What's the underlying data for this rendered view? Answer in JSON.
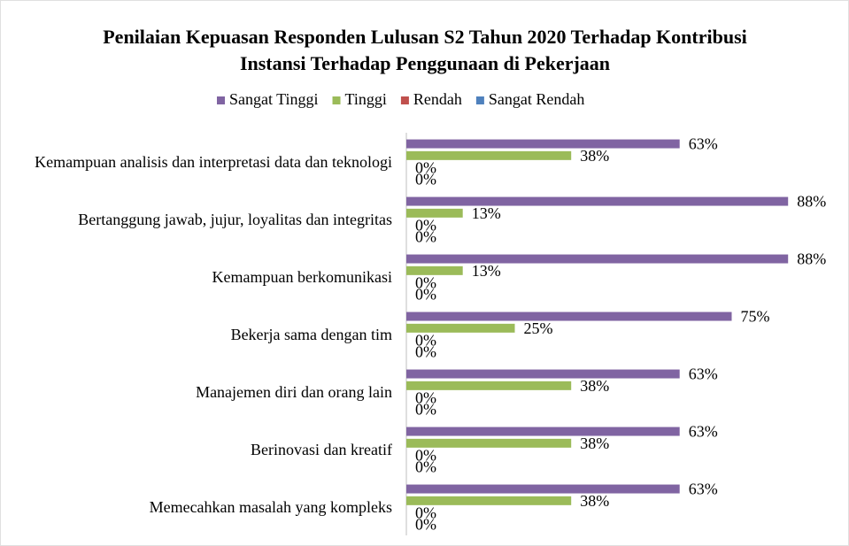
{
  "chart_data": {
    "type": "barh",
    "title": "Penilaian Kepuasan Responden Lulusan S2 Tahun 2020 Terhadap Kontribusi Instansi Terhadap Penggunaan di Pekerjaan",
    "categories": [
      "Kemampuan analisis dan interpretasi data dan teknologi",
      "Bertanggung jawab, jujur, loyalitas dan integritas",
      "Kemampuan berkomunikasi",
      "Bekerja sama dengan tim",
      "Manajemen diri dan orang lain",
      "Berinovasi dan kreatif",
      "Memecahkan masalah yang kompleks"
    ],
    "series": [
      {
        "name": "Sangat Tinggi",
        "color": "#8064a2",
        "values": [
          63,
          88,
          88,
          75,
          63,
          63,
          63
        ],
        "value_labels": [
          "63%",
          "88%",
          "88%",
          "75%",
          "63%",
          "63%",
          "63%"
        ]
      },
      {
        "name": "Tinggi",
        "color": "#9bbb59",
        "values": [
          38,
          13,
          13,
          25,
          38,
          38,
          38
        ],
        "value_labels": [
          "38%",
          "13%",
          "13%",
          "25%",
          "38%",
          "38%",
          "38%"
        ]
      },
      {
        "name": "Rendah",
        "color": "#c0504d",
        "values": [
          0,
          0,
          0,
          0,
          0,
          0,
          0
        ],
        "value_labels": [
          "0%",
          "0%",
          "0%",
          "0%",
          "0%",
          "0%",
          "0%"
        ]
      },
      {
        "name": "Sangat Rendah",
        "color": "#4f81bd",
        "values": [
          0,
          0,
          0,
          0,
          0,
          0,
          0
        ],
        "value_labels": [
          "0%",
          "0%",
          "0%",
          "0%",
          "0%",
          "0%",
          "0%"
        ]
      }
    ],
    "xlim": [
      0,
      100
    ],
    "legend": "top"
  }
}
